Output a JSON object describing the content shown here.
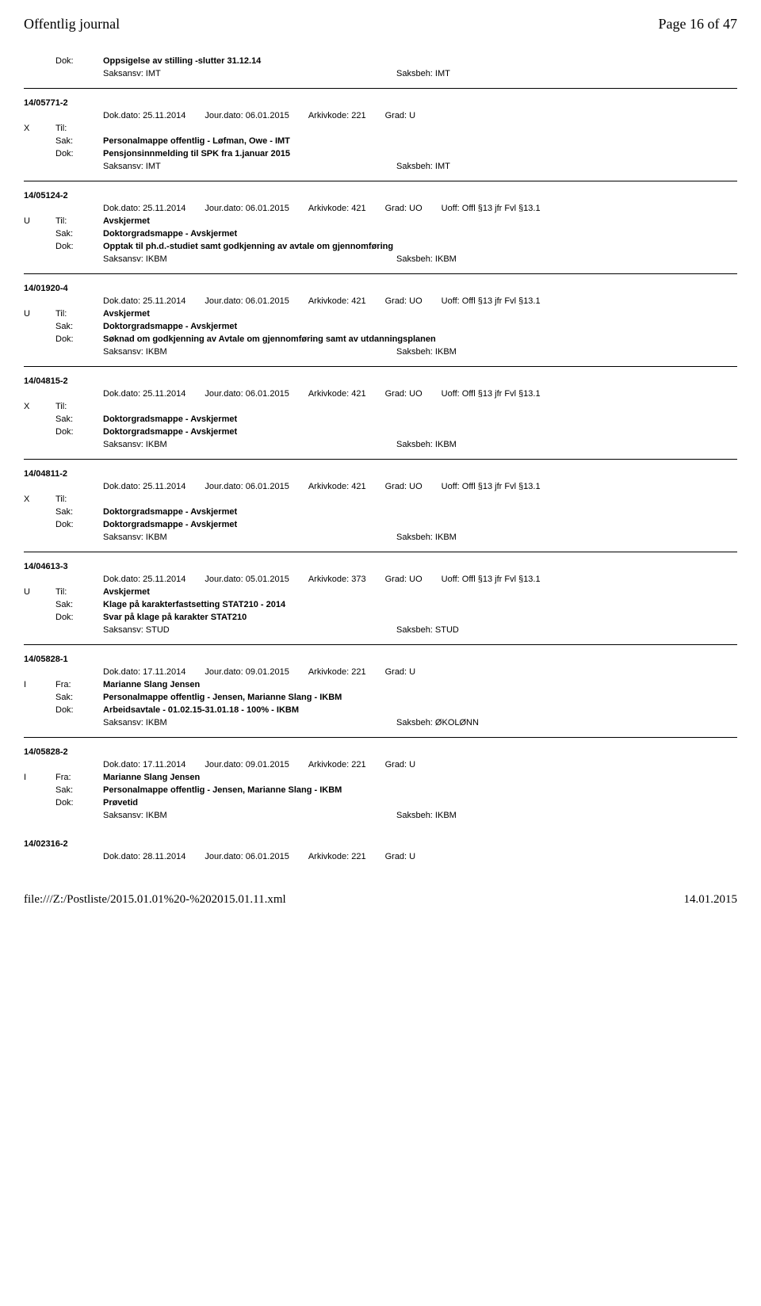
{
  "header": {
    "left": "Offentlig journal",
    "right": "Page 16 of 47"
  },
  "topDok": {
    "label": "Dok:",
    "value": "Oppsigelse av stilling -slutter 31.12.14",
    "saksansv": "Saksansv: IMT",
    "saksbeh": "Saksbeh: IMT"
  },
  "entries": [
    {
      "id": "14/05771-2",
      "meta": {
        "dokdato": "Dok.dato: 25.11.2014",
        "jourdato": "Jour.dato: 06.01.2015",
        "arkivkode": "Arkivkode: 221",
        "grad": "Grad: U",
        "uoff": ""
      },
      "roleCode": "X",
      "roleLabel": "Til:",
      "roleValue": "",
      "sak": "Personalmappe offentlig - Løfman, Owe - IMT",
      "dok": "Pensjonsinnmelding til SPK fra 1.januar 2015",
      "saksansv": "Saksansv: IMT",
      "saksbeh": "Saksbeh: IMT"
    },
    {
      "id": "14/05124-2",
      "meta": {
        "dokdato": "Dok.dato: 25.11.2014",
        "jourdato": "Jour.dato: 06.01.2015",
        "arkivkode": "Arkivkode: 421",
        "grad": "Grad: UO",
        "uoff": "Uoff: Offl §13 jfr Fvl §13.1"
      },
      "roleCode": "U",
      "roleLabel": "Til:",
      "roleValue": "Avskjermet",
      "sak": "Doktorgradsmappe - Avskjermet",
      "dok": "Opptak til ph.d.-studiet samt godkjenning av avtale om gjennomføring",
      "saksansv": "Saksansv: IKBM",
      "saksbeh": "Saksbeh: IKBM"
    },
    {
      "id": "14/01920-4",
      "meta": {
        "dokdato": "Dok.dato: 25.11.2014",
        "jourdato": "Jour.dato: 06.01.2015",
        "arkivkode": "Arkivkode: 421",
        "grad": "Grad: UO",
        "uoff": "Uoff: Offl §13 jfr Fvl §13.1"
      },
      "roleCode": "U",
      "roleLabel": "Til:",
      "roleValue": "Avskjermet",
      "sak": "Doktorgradsmappe - Avskjermet",
      "dok": "Søknad om godkjenning av Avtale om gjennomføring samt av utdanningsplanen",
      "saksansv": "Saksansv: IKBM",
      "saksbeh": "Saksbeh: IKBM"
    },
    {
      "id": "14/04815-2",
      "meta": {
        "dokdato": "Dok.dato: 25.11.2014",
        "jourdato": "Jour.dato: 06.01.2015",
        "arkivkode": "Arkivkode: 421",
        "grad": "Grad: UO",
        "uoff": "Uoff: Offl §13 jfr Fvl §13.1"
      },
      "roleCode": "X",
      "roleLabel": "Til:",
      "roleValue": "",
      "sak": "Doktorgradsmappe - Avskjermet",
      "dok": "Doktorgradsmappe - Avskjermet",
      "saksansv": "Saksansv: IKBM",
      "saksbeh": "Saksbeh: IKBM"
    },
    {
      "id": "14/04811-2",
      "meta": {
        "dokdato": "Dok.dato: 25.11.2014",
        "jourdato": "Jour.dato: 06.01.2015",
        "arkivkode": "Arkivkode: 421",
        "grad": "Grad: UO",
        "uoff": "Uoff: Offl §13 jfr Fvl §13.1"
      },
      "roleCode": "X",
      "roleLabel": "Til:",
      "roleValue": "",
      "sak": "Doktorgradsmappe - Avskjermet",
      "dok": "Doktorgradsmappe - Avskjermet",
      "saksansv": "Saksansv: IKBM",
      "saksbeh": "Saksbeh: IKBM"
    },
    {
      "id": "14/04613-3",
      "meta": {
        "dokdato": "Dok.dato: 25.11.2014",
        "jourdato": "Jour.dato: 05.01.2015",
        "arkivkode": "Arkivkode: 373",
        "grad": "Grad: UO",
        "uoff": "Uoff: Offl §13 jfr Fvl §13.1"
      },
      "roleCode": "U",
      "roleLabel": "Til:",
      "roleValue": "Avskjermet",
      "sak": "Klage på karakterfastsetting STAT210 - 2014",
      "dok": "Svar på klage på karakter STAT210",
      "saksansv": "Saksansv: STUD",
      "saksbeh": "Saksbeh: STUD"
    },
    {
      "id": "14/05828-1",
      "meta": {
        "dokdato": "Dok.dato: 17.11.2014",
        "jourdato": "Jour.dato: 09.01.2015",
        "arkivkode": "Arkivkode: 221",
        "grad": "Grad: U",
        "uoff": ""
      },
      "roleCode": "I",
      "roleLabel": "Fra:",
      "roleValue": "Marianne Slang Jensen",
      "sak": "Personalmappe offentlig - Jensen, Marianne Slang - IKBM",
      "dok": "Arbeidsavtale - 01.02.15-31.01.18 - 100% - IKBM",
      "saksansv": "Saksansv: IKBM",
      "saksbeh": "Saksbeh: ØKOLØNN"
    },
    {
      "id": "14/05828-2",
      "meta": {
        "dokdato": "Dok.dato: 17.11.2014",
        "jourdato": "Jour.dato: 09.01.2015",
        "arkivkode": "Arkivkode: 221",
        "grad": "Grad: U",
        "uoff": ""
      },
      "roleCode": "I",
      "roleLabel": "Fra:",
      "roleValue": "Marianne Slang Jensen",
      "sak": "Personalmappe offentlig - Jensen, Marianne Slang - IKBM",
      "dok": "Prøvetid",
      "saksansv": "Saksansv: IKBM",
      "saksbeh": "Saksbeh: IKBM"
    }
  ],
  "lastEntry": {
    "id": "14/02316-2",
    "meta": {
      "dokdato": "Dok.dato: 28.11.2014",
      "jourdato": "Jour.dato: 06.01.2015",
      "arkivkode": "Arkivkode: 221",
      "grad": "Grad: U",
      "uoff": ""
    }
  },
  "footer": {
    "left": "file:///Z:/Postliste/2015.01.01%20-%202015.01.11.xml",
    "right": "14.01.2015"
  },
  "labels": {
    "sak": "Sak:",
    "dok": "Dok:"
  }
}
